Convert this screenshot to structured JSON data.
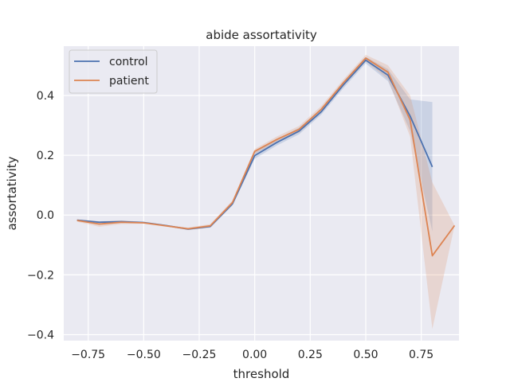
{
  "chart_data": {
    "type": "line",
    "title": "abide assortativity",
    "xlabel": "threshold",
    "ylabel": "assortativity",
    "xlim": [
      -0.86,
      0.92
    ],
    "ylim": [
      -0.42,
      0.565
    ],
    "xticks": [
      -0.75,
      -0.5,
      -0.25,
      0.0,
      0.25,
      0.5,
      0.75
    ],
    "xtick_labels": [
      "−0.75",
      "−0.50",
      "−0.25",
      "0.00",
      "0.25",
      "0.50",
      "0.75"
    ],
    "yticks": [
      -0.4,
      -0.2,
      0.0,
      0.2,
      0.4
    ],
    "ytick_labels": [
      "−0.4",
      "−0.2",
      "0.0",
      "0.2",
      "0.4"
    ],
    "grid": true,
    "legend_position": "top-left",
    "background": "#eaeaf2",
    "series": [
      {
        "name": "control",
        "color": "#4c72b0",
        "x": [
          -0.8,
          -0.7,
          -0.6,
          -0.5,
          -0.4,
          -0.3,
          -0.2,
          -0.1,
          0.0,
          0.1,
          0.2,
          0.3,
          0.4,
          0.5,
          0.6,
          0.7,
          0.8
        ],
        "y": [
          -0.017,
          -0.024,
          -0.022,
          -0.025,
          -0.035,
          -0.047,
          -0.038,
          0.038,
          0.199,
          0.243,
          0.281,
          0.346,
          0.436,
          0.518,
          0.468,
          0.331,
          0.161
        ],
        "ci_low": [
          -0.019,
          -0.027,
          -0.025,
          -0.028,
          -0.037,
          -0.05,
          -0.042,
          0.032,
          0.188,
          0.233,
          0.27,
          0.336,
          0.425,
          0.507,
          0.448,
          0.281,
          -0.055
        ],
        "ci_high": [
          -0.015,
          -0.021,
          -0.019,
          -0.022,
          -0.033,
          -0.044,
          -0.034,
          0.046,
          0.21,
          0.253,
          0.292,
          0.356,
          0.447,
          0.529,
          0.488,
          0.387,
          0.378
        ]
      },
      {
        "name": "patient",
        "color": "#dd8452",
        "x": [
          -0.8,
          -0.7,
          -0.6,
          -0.5,
          -0.4,
          -0.3,
          -0.2,
          -0.1,
          0.0,
          0.1,
          0.2,
          0.3,
          0.4,
          0.5,
          0.6,
          0.7,
          0.8,
          0.9
        ],
        "y": [
          -0.018,
          -0.03,
          -0.024,
          -0.026,
          -0.036,
          -0.046,
          -0.036,
          0.042,
          0.213,
          0.253,
          0.287,
          0.354,
          0.443,
          0.525,
          0.478,
          0.318,
          -0.136,
          -0.035
        ],
        "ci_low": [
          -0.022,
          -0.039,
          -0.03,
          -0.029,
          -0.039,
          -0.05,
          -0.042,
          0.035,
          0.205,
          0.243,
          0.276,
          0.343,
          0.432,
          0.514,
          0.455,
          0.262,
          -0.381,
          -0.035
        ],
        "ci_high": [
          -0.014,
          -0.021,
          -0.018,
          -0.023,
          -0.033,
          -0.042,
          -0.03,
          0.049,
          0.221,
          0.263,
          0.298,
          0.365,
          0.454,
          0.536,
          0.501,
          0.4,
          0.109,
          -0.035
        ]
      }
    ]
  }
}
